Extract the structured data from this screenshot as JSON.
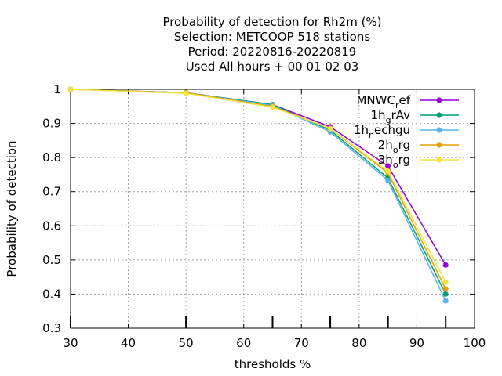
{
  "chart_data": {
    "type": "line",
    "title_lines": [
      "Probability of detection  for Rh2m (%)",
      "Selection: METCOOP    518 stations",
      "Period: 20220816-20220819",
      "Used  All hours  + 00 01 02 03"
    ],
    "xlabel": "thresholds %",
    "ylabel": "Probability of detection",
    "xlim": [
      30,
      100
    ],
    "ylim": [
      0.3,
      1.0
    ],
    "xticks": [
      30,
      40,
      50,
      60,
      70,
      80,
      90,
      100
    ],
    "yticks": [
      0.3,
      0.4,
      0.5,
      0.6,
      0.7,
      0.8,
      0.9,
      1.0
    ],
    "ytick_labels": [
      "0.3",
      "0.4",
      "0.5",
      "0.6",
      "0.7",
      "0.8",
      "0.9",
      "1"
    ],
    "grid": true,
    "legend_position": "top-right",
    "x": [
      30,
      50,
      65,
      75,
      85,
      95
    ],
    "series": [
      {
        "name": "MNWC_ref",
        "legend_main": "MNWC",
        "legend_sub": "r",
        "legend_tail": "ef",
        "color": "#9400d3",
        "values": [
          1.0,
          0.99,
          0.955,
          0.89,
          0.775,
          0.485
        ]
      },
      {
        "name": "1h_grAv",
        "legend_main": "1h",
        "legend_sub": "g",
        "legend_tail": "rAv",
        "color": "#009e73",
        "values": [
          1.0,
          0.99,
          0.955,
          0.88,
          0.74,
          0.4
        ]
      },
      {
        "name": "1h_nechgu",
        "legend_main": "1h",
        "legend_sub": "n",
        "legend_tail": "echgu",
        "color": "#56b4e9",
        "values": [
          1.0,
          0.99,
          0.953,
          0.875,
          0.733,
          0.38
        ]
      },
      {
        "name": "2h_org",
        "legend_main": "2h",
        "legend_sub": "o",
        "legend_tail": "rg",
        "color": "#e69f00",
        "values": [
          1.0,
          0.99,
          0.95,
          0.885,
          0.755,
          0.415
        ]
      },
      {
        "name": "3h_org",
        "legend_main": "3h",
        "legend_sub": "o",
        "legend_tail": "rg",
        "color": "#f0e442",
        "values": [
          1.0,
          0.988,
          0.948,
          0.885,
          0.76,
          0.435
        ]
      }
    ],
    "bottom_ticks_x": [
      30,
      50,
      65,
      75,
      85,
      95
    ]
  }
}
